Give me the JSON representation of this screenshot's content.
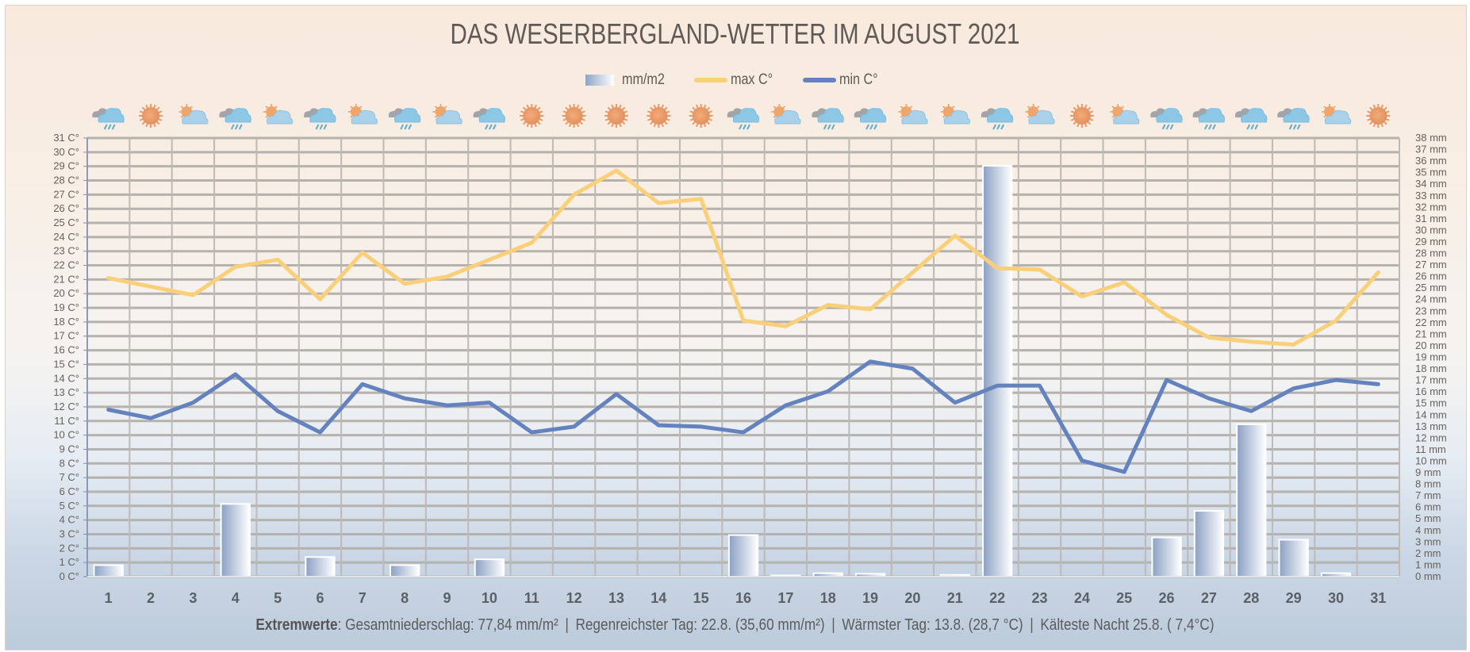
{
  "chart_data": {
    "type": "bar+line",
    "title": "DAS  WESERBERGLAND-WETTER IM AUGUST 2021",
    "legend": {
      "position": "top-center",
      "entries": [
        {
          "name": "mm/m2",
          "kind": "bar"
        },
        {
          "name": "max C°",
          "kind": "line",
          "color": "#f9cf7a"
        },
        {
          "name": "min C°",
          "kind": "line",
          "color": "#6482bd"
        }
      ]
    },
    "categories": [
      "1",
      "2",
      "3",
      "4",
      "5",
      "6",
      "7",
      "8",
      "9",
      "10",
      "11",
      "12",
      "13",
      "14",
      "15",
      "16",
      "17",
      "18",
      "19",
      "20",
      "21",
      "22",
      "23",
      "24",
      "25",
      "26",
      "27",
      "28",
      "29",
      "30",
      "31"
    ],
    "weather_icons": [
      "rain",
      "sun",
      "partly-cloudy",
      "rain",
      "partly-cloudy",
      "rain",
      "partly-cloudy",
      "rain",
      "partly-cloudy",
      "rain",
      "sun",
      "sun",
      "sun",
      "sun",
      "sun",
      "rain",
      "partly-cloudy",
      "rain",
      "rain",
      "partly-cloudy",
      "partly-cloudy",
      "rain",
      "partly-cloudy",
      "sun",
      "partly-cloudy",
      "rain",
      "rain",
      "rain",
      "rain",
      "partly-cloudy",
      "sun"
    ],
    "series": [
      {
        "name": "mm/m2",
        "type": "bar",
        "axis": "right",
        "values": [
          1.0,
          0,
          0,
          6.3,
          0,
          1.7,
          0,
          1.0,
          0,
          1.5,
          0,
          0,
          0,
          0,
          0,
          3.6,
          0.1,
          0.3,
          0.25,
          0,
          0.15,
          35.6,
          0,
          0,
          0,
          3.4,
          5.7,
          13.2,
          3.2,
          0.3,
          0
        ]
      },
      {
        "name": "max C°",
        "type": "line",
        "axis": "left",
        "color": "#f9cf7a",
        "values": [
          21.1,
          20.5,
          19.9,
          21.9,
          22.4,
          19.6,
          22.9,
          20.7,
          21.2,
          22.4,
          23.6,
          27.0,
          28.7,
          26.4,
          26.7,
          18.1,
          17.7,
          19.2,
          18.9,
          21.5,
          24.1,
          21.8,
          21.7,
          19.8,
          20.8,
          18.5,
          16.9,
          16.6,
          16.4,
          18.1,
          21.5
        ]
      },
      {
        "name": "min C°",
        "type": "line",
        "axis": "left",
        "color": "#6482bd",
        "values": [
          11.8,
          11.2,
          12.3,
          14.3,
          11.7,
          10.2,
          13.6,
          12.6,
          12.1,
          12.3,
          10.2,
          10.6,
          12.9,
          10.7,
          10.6,
          10.2,
          12.1,
          13.1,
          15.2,
          14.7,
          12.3,
          13.5,
          13.5,
          8.2,
          7.4,
          13.9,
          12.6,
          11.7,
          13.3,
          13.9,
          13.6
        ]
      }
    ],
    "left_axis": {
      "unit": "C°",
      "range": [
        0,
        31
      ],
      "step": 1
    },
    "right_axis": {
      "unit": "mm",
      "range": [
        0,
        38
      ],
      "step": 1
    },
    "grid": true
  },
  "footer": {
    "label": "Extremwerte",
    "parts": [
      "Gesamtniederschlag: 77,84 mm/m²",
      "Regenreichster Tag: 22.8. (35,60 mm/m²)",
      "Wärmster Tag: 13.8. (28,7 °C)",
      "Kälteste Nacht 25.8. ( 7,4°C)"
    ]
  }
}
